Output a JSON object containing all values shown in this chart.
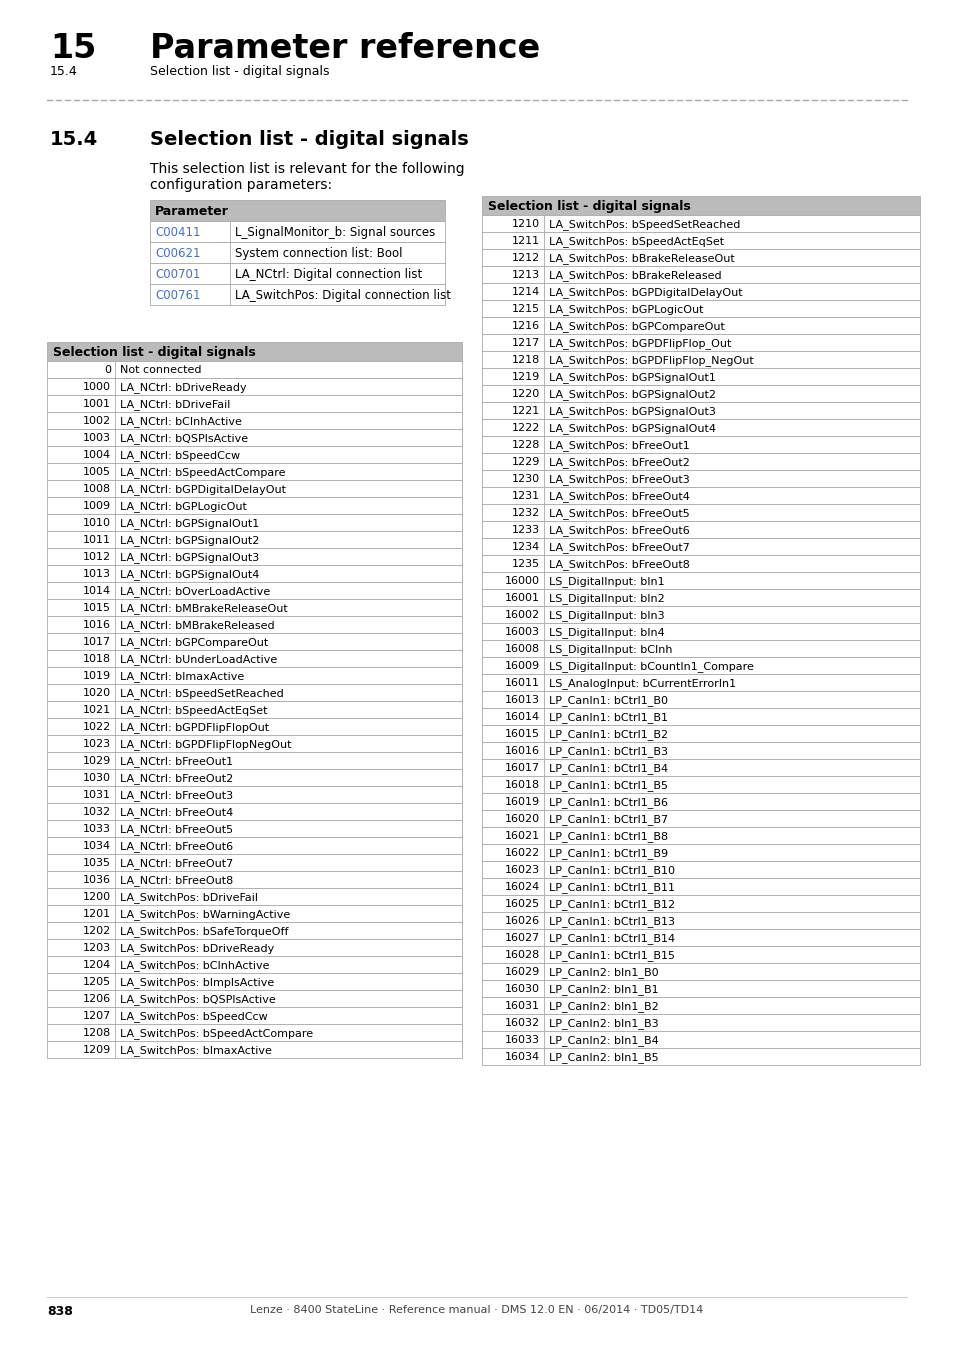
{
  "page_num": "838",
  "footer_text": "Lenze · 8400 StateLine · Reference manual · DMS 12.0 EN · 06/2014 · TD05/TD14",
  "chapter_num": "15",
  "chapter_title": "Parameter reference",
  "section_num": "15.4",
  "section_title": "Selection list - digital signals",
  "intro_text_line1": "This selection list is relevant for the following",
  "intro_text_line2": "configuration parameters:",
  "param_table_header": "Parameter",
  "param_table_rows": [
    [
      "C00411",
      "L_SignalMonitor_b: Signal sources"
    ],
    [
      "C00621",
      "System connection list: Bool"
    ],
    [
      "C00701",
      "LA_NCtrl: Digital connection list"
    ],
    [
      "C00761",
      "LA_SwitchPos: Digital connection list"
    ]
  ],
  "left_table_header": "Selection list - digital signals",
  "left_table_rows": [
    [
      "0",
      "Not connected"
    ],
    [
      "1000",
      "LA_NCtrl: bDriveReady"
    ],
    [
      "1001",
      "LA_NCtrl: bDriveFail"
    ],
    [
      "1002",
      "LA_NCtrl: bCInhActive"
    ],
    [
      "1003",
      "LA_NCtrl: bQSPlsActive"
    ],
    [
      "1004",
      "LA_NCtrl: bSpeedCcw"
    ],
    [
      "1005",
      "LA_NCtrl: bSpeedActCompare"
    ],
    [
      "1008",
      "LA_NCtrl: bGPDigitalDelayOut"
    ],
    [
      "1009",
      "LA_NCtrl: bGPLogicOut"
    ],
    [
      "1010",
      "LA_NCtrl: bGPSignalOut1"
    ],
    [
      "1011",
      "LA_NCtrl: bGPSignalOut2"
    ],
    [
      "1012",
      "LA_NCtrl: bGPSignalOut3"
    ],
    [
      "1013",
      "LA_NCtrl: bGPSignalOut4"
    ],
    [
      "1014",
      "LA_NCtrl: bOverLoadActive"
    ],
    [
      "1015",
      "LA_NCtrl: bMBrakeReleaseOut"
    ],
    [
      "1016",
      "LA_NCtrl: bMBrakeReleased"
    ],
    [
      "1017",
      "LA_NCtrl: bGPCompareOut"
    ],
    [
      "1018",
      "LA_NCtrl: bUnderLoadActive"
    ],
    [
      "1019",
      "LA_NCtrl: bImaxActive"
    ],
    [
      "1020",
      "LA_NCtrl: bSpeedSetReached"
    ],
    [
      "1021",
      "LA_NCtrl: bSpeedActEqSet"
    ],
    [
      "1022",
      "LA_NCtrl: bGPDFlipFlopOut"
    ],
    [
      "1023",
      "LA_NCtrl: bGPDFlipFlopNegOut"
    ],
    [
      "1029",
      "LA_NCtrl: bFreeOut1"
    ],
    [
      "1030",
      "LA_NCtrl: bFreeOut2"
    ],
    [
      "1031",
      "LA_NCtrl: bFreeOut3"
    ],
    [
      "1032",
      "LA_NCtrl: bFreeOut4"
    ],
    [
      "1033",
      "LA_NCtrl: bFreeOut5"
    ],
    [
      "1034",
      "LA_NCtrl: bFreeOut6"
    ],
    [
      "1035",
      "LA_NCtrl: bFreeOut7"
    ],
    [
      "1036",
      "LA_NCtrl: bFreeOut8"
    ],
    [
      "1200",
      "LA_SwitchPos: bDriveFail"
    ],
    [
      "1201",
      "LA_SwitchPos: bWarningActive"
    ],
    [
      "1202",
      "LA_SwitchPos: bSafeTorqueOff"
    ],
    [
      "1203",
      "LA_SwitchPos: bDriveReady"
    ],
    [
      "1204",
      "LA_SwitchPos: bCInhActive"
    ],
    [
      "1205",
      "LA_SwitchPos: bImplsActive"
    ],
    [
      "1206",
      "LA_SwitchPos: bQSPlsActive"
    ],
    [
      "1207",
      "LA_SwitchPos: bSpeedCcw"
    ],
    [
      "1208",
      "LA_SwitchPos: bSpeedActCompare"
    ],
    [
      "1209",
      "LA_SwitchPos: bImaxActive"
    ]
  ],
  "right_table_header": "Selection list - digital signals",
  "right_table_rows": [
    [
      "1210",
      "LA_SwitchPos: bSpeedSetReached"
    ],
    [
      "1211",
      "LA_SwitchPos: bSpeedActEqSet"
    ],
    [
      "1212",
      "LA_SwitchPos: bBrakeReleaseOut"
    ],
    [
      "1213",
      "LA_SwitchPos: bBrakeReleased"
    ],
    [
      "1214",
      "LA_SwitchPos: bGPDigitalDelayOut"
    ],
    [
      "1215",
      "LA_SwitchPos: bGPLogicOut"
    ],
    [
      "1216",
      "LA_SwitchPos: bGPCompareOut"
    ],
    [
      "1217",
      "LA_SwitchPos: bGPDFlipFlop_Out"
    ],
    [
      "1218",
      "LA_SwitchPos: bGPDFlipFlop_NegOut"
    ],
    [
      "1219",
      "LA_SwitchPos: bGPSignalOut1"
    ],
    [
      "1220",
      "LA_SwitchPos: bGPSignalOut2"
    ],
    [
      "1221",
      "LA_SwitchPos: bGPSignalOut3"
    ],
    [
      "1222",
      "LA_SwitchPos: bGPSignalOut4"
    ],
    [
      "1228",
      "LA_SwitchPos: bFreeOut1"
    ],
    [
      "1229",
      "LA_SwitchPos: bFreeOut2"
    ],
    [
      "1230",
      "LA_SwitchPos: bFreeOut3"
    ],
    [
      "1231",
      "LA_SwitchPos: bFreeOut4"
    ],
    [
      "1232",
      "LA_SwitchPos: bFreeOut5"
    ],
    [
      "1233",
      "LA_SwitchPos: bFreeOut6"
    ],
    [
      "1234",
      "LA_SwitchPos: bFreeOut7"
    ],
    [
      "1235",
      "LA_SwitchPos: bFreeOut8"
    ],
    [
      "16000",
      "LS_DigitalInput: bIn1"
    ],
    [
      "16001",
      "LS_DigitalInput: bIn2"
    ],
    [
      "16002",
      "LS_DigitalInput: bIn3"
    ],
    [
      "16003",
      "LS_DigitalInput: bIn4"
    ],
    [
      "16008",
      "LS_DigitalInput: bCInh"
    ],
    [
      "16009",
      "LS_DigitalInput: bCountIn1_Compare"
    ],
    [
      "16011",
      "LS_AnalogInput: bCurrentErrorIn1"
    ],
    [
      "16013",
      "LP_CanIn1: bCtrl1_B0"
    ],
    [
      "16014",
      "LP_CanIn1: bCtrl1_B1"
    ],
    [
      "16015",
      "LP_CanIn1: bCtrl1_B2"
    ],
    [
      "16016",
      "LP_CanIn1: bCtrl1_B3"
    ],
    [
      "16017",
      "LP_CanIn1: bCtrl1_B4"
    ],
    [
      "16018",
      "LP_CanIn1: bCtrl1_B5"
    ],
    [
      "16019",
      "LP_CanIn1: bCtrl1_B6"
    ],
    [
      "16020",
      "LP_CanIn1: bCtrl1_B7"
    ],
    [
      "16021",
      "LP_CanIn1: bCtrl1_B8"
    ],
    [
      "16022",
      "LP_CanIn1: bCtrl1_B9"
    ],
    [
      "16023",
      "LP_CanIn1: bCtrl1_B10"
    ],
    [
      "16024",
      "LP_CanIn1: bCtrl1_B11"
    ],
    [
      "16025",
      "LP_CanIn1: bCtrl1_B12"
    ],
    [
      "16026",
      "LP_CanIn1: bCtrl1_B13"
    ],
    [
      "16027",
      "LP_CanIn1: bCtrl1_B14"
    ],
    [
      "16028",
      "LP_CanIn1: bCtrl1_B15"
    ],
    [
      "16029",
      "LP_CanIn2: bIn1_B0"
    ],
    [
      "16030",
      "LP_CanIn2: bIn1_B1"
    ],
    [
      "16031",
      "LP_CanIn2: bIn1_B2"
    ],
    [
      "16032",
      "LP_CanIn2: bIn1_B3"
    ],
    [
      "16033",
      "LP_CanIn2: bIn1_B4"
    ],
    [
      "16034",
      "LP_CanIn2: bIn1_B5"
    ]
  ],
  "bg_color": "#ffffff",
  "header_bg": "#bbbbbb",
  "row_bg_white": "#ffffff",
  "border_color": "#aaaaaa",
  "link_color": "#4472c4",
  "text_color": "#000000",
  "dash_color": "#aaaaaa"
}
